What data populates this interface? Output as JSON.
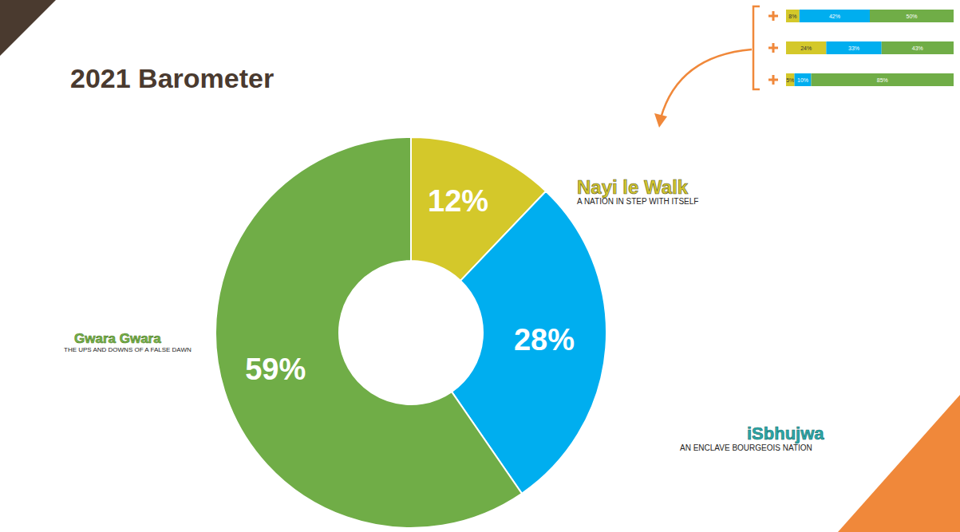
{
  "chart_data": [
    {
      "type": "pie",
      "title": "2021 Barometer",
      "categories": [
        "Nayi le Walk",
        "iSbhujwa",
        "Gwara Gwara"
      ],
      "annotations": [
        "A NATION IN STEP WITH ITSELF",
        "AN ENCLAVE BOURGEOIS NATION",
        "THE UPS AND DOWNS OF A FALSE DAWN"
      ],
      "values": [
        12,
        28,
        59
      ],
      "value_labels": [
        "12%",
        "28%",
        "59%"
      ],
      "colors": [
        "#D4C82A",
        "#00AEEF",
        "#70AD47"
      ],
      "data_labels": true
    },
    {
      "type": "bar",
      "orientation": "horizontal",
      "stacked": true,
      "categories": [
        null,
        null,
        null
      ],
      "xlim": [
        0,
        100
      ],
      "tick_labels": false,
      "data_labels": true,
      "series": [
        {
          "color": "#D4C82A",
          "values": [
            8,
            24,
            5
          ],
          "value_labels": [
            "8%",
            "24%",
            "5%"
          ]
        },
        {
          "color": "#00AEEF",
          "values": [
            42,
            33,
            10
          ],
          "value_labels": [
            "42%",
            "33%",
            "10%"
          ]
        },
        {
          "color": "#70AD47",
          "values": [
            50,
            43,
            85
          ],
          "value_labels": [
            "50%",
            "43%",
            "85%"
          ]
        }
      ]
    }
  ]
}
